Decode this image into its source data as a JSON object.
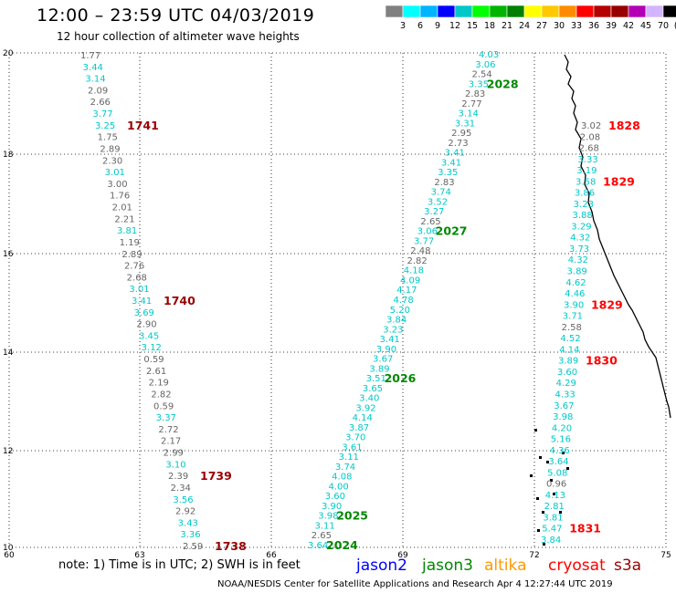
{
  "header": {
    "title": "12:00 – 23:59 UTC 04/03/2019",
    "subtitle": "12 hour collection of altimeter wave heights"
  },
  "color_scale": {
    "labels": [
      "3",
      "6",
      "9",
      "12",
      "15",
      "18",
      "21",
      "24",
      "27",
      "30",
      "33",
      "36",
      "39",
      "42",
      "45",
      "70",
      "(ft)"
    ],
    "colors": [
      "#808080",
      "#00ffff",
      "#00b4ff",
      "#0000ff",
      "#00c8c8",
      "#00ff00",
      "#00b400",
      "#008000",
      "#ffff00",
      "#ffc800",
      "#ff8c00",
      "#ff0000",
      "#b40000",
      "#960000",
      "#b400b4",
      "#d2b4ff",
      "#000000"
    ]
  },
  "axes": {
    "x_ticks": [
      "60",
      "63",
      "66",
      "69",
      "72",
      "75"
    ],
    "y_ticks": [
      "20",
      "18",
      "16",
      "14",
      "12",
      "10"
    ]
  },
  "footer": {
    "note": "note: 1) Time is in UTC; 2) SWH is in feet",
    "credit": "NOAA/NESDIS Center for Satellite Applications and Research   Apr  4 12:27:44 UTC 2019",
    "satellites": [
      {
        "name": "jason2",
        "color": "#0000ff"
      },
      {
        "name": "jason3",
        "color": "#008800"
      },
      {
        "name": "altika",
        "color": "#ff9900"
      },
      {
        "name": "cryosat",
        "color": "#ff0000"
      },
      {
        "name": "s3a",
        "color": "#990000"
      }
    ]
  },
  "tracks": [
    {
      "id": "track-west",
      "points": [
        {
          "v": "1.77",
          "c": "#666666"
        },
        {
          "v": "3.44",
          "c": "#00c8c8"
        },
        {
          "v": "3.14",
          "c": "#00c8c8"
        },
        {
          "v": "2.09",
          "c": "#666666"
        },
        {
          "v": "2.66",
          "c": "#666666"
        },
        {
          "v": "3.77",
          "c": "#00c8c8"
        },
        {
          "v": "3.25",
          "c": "#00c8c8"
        },
        {
          "v": "1.75",
          "c": "#666666"
        },
        {
          "v": "2.89",
          "c": "#666666"
        },
        {
          "v": "2.30",
          "c": "#666666"
        },
        {
          "v": "3.01",
          "c": "#00c8c8"
        },
        {
          "v": "3.00",
          "c": "#666666"
        },
        {
          "v": "1.76",
          "c": "#666666"
        },
        {
          "v": "2.01",
          "c": "#666666"
        },
        {
          "v": "2.21",
          "c": "#666666"
        },
        {
          "v": "3.81",
          "c": "#00c8c8"
        },
        {
          "v": "1.19",
          "c": "#666666"
        },
        {
          "v": "2.89",
          "c": "#666666"
        },
        {
          "v": "2.76",
          "c": "#666666"
        },
        {
          "v": "2.68",
          "c": "#666666"
        },
        {
          "v": "3.01",
          "c": "#00c8c8"
        },
        {
          "v": "3.41",
          "c": "#00c8c8"
        },
        {
          "v": "3.69",
          "c": "#00c8c8"
        },
        {
          "v": "2.90",
          "c": "#666666"
        },
        {
          "v": "3.45",
          "c": "#00c8c8"
        },
        {
          "v": "3.12",
          "c": "#00c8c8"
        },
        {
          "v": "0.59",
          "c": "#666666"
        },
        {
          "v": "2.61",
          "c": "#666666"
        },
        {
          "v": "2.19",
          "c": "#666666"
        },
        {
          "v": "2.82",
          "c": "#666666"
        },
        {
          "v": "0.59",
          "c": "#666666"
        },
        {
          "v": "3.37",
          "c": "#00c8c8"
        },
        {
          "v": "2.72",
          "c": "#666666"
        },
        {
          "v": "2.17",
          "c": "#666666"
        },
        {
          "v": "2.99",
          "c": "#666666"
        },
        {
          "v": "3.10",
          "c": "#00c8c8"
        },
        {
          "v": "2.39",
          "c": "#666666"
        },
        {
          "v": "2.34",
          "c": "#666666"
        },
        {
          "v": "3.56",
          "c": "#00c8c8"
        },
        {
          "v": "2.92",
          "c": "#666666"
        },
        {
          "v": "3.43",
          "c": "#00c8c8"
        },
        {
          "v": "3.36",
          "c": "#00c8c8"
        },
        {
          "v": "2.59",
          "c": "#666666"
        }
      ],
      "time_labels": [
        {
          "t": "1741",
          "c": "#990000",
          "at": 6
        },
        {
          "t": "1740",
          "c": "#990000",
          "at": 21
        },
        {
          "t": "1739",
          "c": "#990000",
          "at": 36
        },
        {
          "t": "1738",
          "c": "#990000",
          "at": 42
        }
      ]
    },
    {
      "id": "track-middle",
      "points": [
        {
          "v": "4.03",
          "c": "#00c8c8"
        },
        {
          "v": "3.06",
          "c": "#00c8c8"
        },
        {
          "v": "2.54",
          "c": "#666666"
        },
        {
          "v": "3.35",
          "c": "#00c8c8"
        },
        {
          "v": "2.83",
          "c": "#666666"
        },
        {
          "v": "2.77",
          "c": "#666666"
        },
        {
          "v": "3.14",
          "c": "#00c8c8"
        },
        {
          "v": "3.31",
          "c": "#00c8c8"
        },
        {
          "v": "2.95",
          "c": "#666666"
        },
        {
          "v": "2.73",
          "c": "#666666"
        },
        {
          "v": "3.41",
          "c": "#00c8c8"
        },
        {
          "v": "3.41",
          "c": "#00c8c8"
        },
        {
          "v": "3.35",
          "c": "#00c8c8"
        },
        {
          "v": "2.83",
          "c": "#666666"
        },
        {
          "v": "3.74",
          "c": "#00c8c8"
        },
        {
          "v": "3.52",
          "c": "#00c8c8"
        },
        {
          "v": "3.27",
          "c": "#00c8c8"
        },
        {
          "v": "2.65",
          "c": "#666666"
        },
        {
          "v": "3.06",
          "c": "#00c8c8"
        },
        {
          "v": "3.77",
          "c": "#00c8c8"
        },
        {
          "v": "2.48",
          "c": "#666666"
        },
        {
          "v": "2.82",
          "c": "#666666"
        },
        {
          "v": "4.18",
          "c": "#00c8c8"
        },
        {
          "v": "4.09",
          "c": "#00c8c8"
        },
        {
          "v": "4.17",
          "c": "#00c8c8"
        },
        {
          "v": "4.78",
          "c": "#00c8c8"
        },
        {
          "v": "5.20",
          "c": "#00c8c8"
        },
        {
          "v": "3.84",
          "c": "#00c8c8"
        },
        {
          "v": "3.23",
          "c": "#00c8c8"
        },
        {
          "v": "3.41",
          "c": "#00c8c8"
        },
        {
          "v": "3.90",
          "c": "#00c8c8"
        },
        {
          "v": "3.67",
          "c": "#00c8c8"
        },
        {
          "v": "3.89",
          "c": "#00c8c8"
        },
        {
          "v": "3.51",
          "c": "#00c8c8"
        },
        {
          "v": "3.65",
          "c": "#00c8c8"
        },
        {
          "v": "3.40",
          "c": "#00c8c8"
        },
        {
          "v": "3.92",
          "c": "#00c8c8"
        },
        {
          "v": "4.14",
          "c": "#00c8c8"
        },
        {
          "v": "3.87",
          "c": "#00c8c8"
        },
        {
          "v": "3.70",
          "c": "#00c8c8"
        },
        {
          "v": "3.61",
          "c": "#00c8c8"
        },
        {
          "v": "3.11",
          "c": "#00c8c8"
        },
        {
          "v": "3.74",
          "c": "#00c8c8"
        },
        {
          "v": "4.08",
          "c": "#00c8c8"
        },
        {
          "v": "4.00",
          "c": "#00c8c8"
        },
        {
          "v": "3.60",
          "c": "#00c8c8"
        },
        {
          "v": "3.90",
          "c": "#00c8c8"
        },
        {
          "v": "3.98",
          "c": "#00c8c8"
        },
        {
          "v": "3.11",
          "c": "#00c8c8"
        },
        {
          "v": "2.65",
          "c": "#666666"
        },
        {
          "v": "3.64",
          "c": "#00c8c8"
        }
      ],
      "time_labels": [
        {
          "t": "2028",
          "c": "#008800",
          "at": 3
        },
        {
          "t": "2027",
          "c": "#008800",
          "at": 18
        },
        {
          "t": "2026",
          "c": "#008800",
          "at": 33
        },
        {
          "t": "2025",
          "c": "#008800",
          "at": 47
        },
        {
          "t": "2024",
          "c": "#008800",
          "at": 50
        }
      ]
    },
    {
      "id": "track-east",
      "points": [
        {
          "v": "3.02",
          "c": "#666666"
        },
        {
          "v": "2.08",
          "c": "#666666"
        },
        {
          "v": "2.68",
          "c": "#666666"
        },
        {
          "v": "3.33",
          "c": "#00c8c8"
        },
        {
          "v": "3.19",
          "c": "#00c8c8"
        },
        {
          "v": "3.58",
          "c": "#00c8c8"
        },
        {
          "v": "3.86",
          "c": "#00c8c8"
        },
        {
          "v": "3.23",
          "c": "#00c8c8"
        },
        {
          "v": "3.88",
          "c": "#00c8c8"
        },
        {
          "v": "3.29",
          "c": "#00c8c8"
        },
        {
          "v": "4.32",
          "c": "#00c8c8"
        },
        {
          "v": "3.73",
          "c": "#00c8c8"
        },
        {
          "v": "4.32",
          "c": "#00c8c8"
        },
        {
          "v": "3.89",
          "c": "#00c8c8"
        },
        {
          "v": "4.62",
          "c": "#00c8c8"
        },
        {
          "v": "4.46",
          "c": "#00c8c8"
        },
        {
          "v": "3.90",
          "c": "#00c8c8"
        },
        {
          "v": "3.71",
          "c": "#00c8c8"
        },
        {
          "v": "2.58",
          "c": "#666666"
        },
        {
          "v": "4.52",
          "c": "#00c8c8"
        },
        {
          "v": "4.14",
          "c": "#00c8c8"
        },
        {
          "v": "3.89",
          "c": "#00c8c8"
        },
        {
          "v": "3.60",
          "c": "#00c8c8"
        },
        {
          "v": "4.29",
          "c": "#00c8c8"
        },
        {
          "v": "4.33",
          "c": "#00c8c8"
        },
        {
          "v": "3.67",
          "c": "#00c8c8"
        },
        {
          "v": "3.98",
          "c": "#00c8c8"
        },
        {
          "v": "4.20",
          "c": "#00c8c8"
        },
        {
          "v": "5.16",
          "c": "#00c8c8"
        },
        {
          "v": "4.36",
          "c": "#00c8c8"
        },
        {
          "v": "3.64",
          "c": "#00c8c8"
        },
        {
          "v": "5.08",
          "c": "#00c8c8"
        },
        {
          "v": "0.96",
          "c": "#666666"
        },
        {
          "v": "4.13",
          "c": "#00c8c8"
        },
        {
          "v": "2.81",
          "c": "#00c8c8"
        },
        {
          "v": "3.81",
          "c": "#00c8c8"
        },
        {
          "v": "5.47",
          "c": "#00c8c8"
        },
        {
          "v": "3.84",
          "c": "#00c8c8"
        }
      ],
      "time_labels": [
        {
          "t": "1828",
          "c": "#ff0000",
          "at": 0
        },
        {
          "t": "1829",
          "c": "#ff0000",
          "at": 5
        },
        {
          "t": "1829",
          "c": "#ff0000",
          "at": 16
        },
        {
          "t": "1830",
          "c": "#ff0000",
          "at": 21
        },
        {
          "t": "1831",
          "c": "#ff0000",
          "at": 36
        }
      ]
    }
  ]
}
